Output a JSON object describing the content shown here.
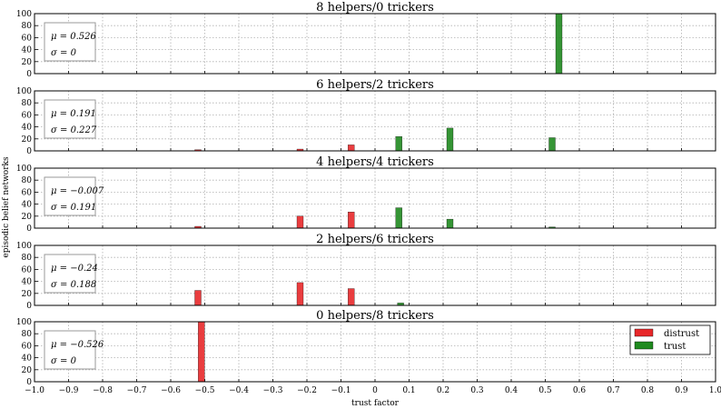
{
  "figure": {
    "ylabel": "episodic belief networks",
    "xlabel": "trust factor",
    "xlim": [
      -1.0,
      1.0
    ],
    "xticks": [
      "−1.0",
      "−0.9",
      "−0.8",
      "−0.7",
      "−0.6",
      "−0.5",
      "−0.4",
      "−0.3",
      "−0.2",
      "−0.1",
      "0",
      "0.1",
      "0.2",
      "0.3",
      "0.4",
      "0.5",
      "0.6",
      "0.7",
      "0.8",
      "0.9",
      "1.0"
    ],
    "yticks": [
      "0",
      "20",
      "40",
      "60",
      "80",
      "100"
    ],
    "legend": {
      "placement": "inside bottom panel, right",
      "entries": [
        {
          "label": "distrust",
          "color": "#e8282a"
        },
        {
          "label": "trust",
          "color": "#1f8a1f"
        }
      ]
    },
    "colors": {
      "distrust": "#e8282a",
      "trust": "#1f8a1f",
      "grid": "#b0b0b0"
    }
  },
  "chart_data": [
    {
      "type": "bar",
      "title": "8 helpers/0 trickers",
      "stats": {
        "mu": "μ = 0.526",
        "sigma": "σ = 0"
      },
      "ylim": [
        0,
        100
      ],
      "xlim": [
        -1.0,
        1.0
      ],
      "grid": true,
      "bars": [
        {
          "x": 0.54,
          "value": 100,
          "kind": "trust"
        }
      ]
    },
    {
      "type": "bar",
      "title": "6 helpers/2 trickers",
      "stats": {
        "mu": "μ = 0.191",
        "sigma": "σ = 0.227"
      },
      "ylim": [
        0,
        100
      ],
      "xlim": [
        -1.0,
        1.0
      ],
      "grid": true,
      "bars": [
        {
          "x": -0.52,
          "value": 2,
          "kind": "distrust"
        },
        {
          "x": -0.22,
          "value": 3,
          "kind": "distrust"
        },
        {
          "x": -0.07,
          "value": 10,
          "kind": "distrust"
        },
        {
          "x": 0.07,
          "value": 24,
          "kind": "trust"
        },
        {
          "x": 0.22,
          "value": 38,
          "kind": "trust"
        },
        {
          "x": 0.52,
          "value": 22,
          "kind": "trust"
        }
      ]
    },
    {
      "type": "bar",
      "title": "4 helpers/4 trickers",
      "stats": {
        "mu": "μ = −0.007",
        "sigma": "σ = 0.191"
      },
      "ylim": [
        0,
        100
      ],
      "xlim": [
        -1.0,
        1.0
      ],
      "grid": true,
      "bars": [
        {
          "x": -0.52,
          "value": 3,
          "kind": "distrust"
        },
        {
          "x": -0.22,
          "value": 20,
          "kind": "distrust"
        },
        {
          "x": -0.07,
          "value": 27,
          "kind": "distrust"
        },
        {
          "x": 0.07,
          "value": 34,
          "kind": "trust"
        },
        {
          "x": 0.22,
          "value": 15,
          "kind": "trust"
        },
        {
          "x": 0.52,
          "value": 2,
          "kind": "trust"
        }
      ]
    },
    {
      "type": "bar",
      "title": "2 helpers/6 trickers",
      "stats": {
        "mu": "μ = −0.24",
        "sigma": "σ = 0.188"
      },
      "ylim": [
        0,
        100
      ],
      "xlim": [
        -1.0,
        1.0
      ],
      "grid": true,
      "bars": [
        {
          "x": -0.52,
          "value": 25,
          "kind": "distrust"
        },
        {
          "x": -0.22,
          "value": 38,
          "kind": "distrust"
        },
        {
          "x": -0.07,
          "value": 28,
          "kind": "distrust"
        },
        {
          "x": 0.075,
          "value": 4,
          "kind": "trust"
        }
      ]
    },
    {
      "type": "bar",
      "title": "0 helpers/8 trickers",
      "stats": {
        "mu": "μ = −0.526",
        "sigma": "σ = 0"
      },
      "ylim": [
        0,
        100
      ],
      "xlim": [
        -1.0,
        1.0
      ],
      "grid": true,
      "bars": [
        {
          "x": -0.51,
          "value": 100,
          "kind": "distrust"
        }
      ]
    }
  ]
}
